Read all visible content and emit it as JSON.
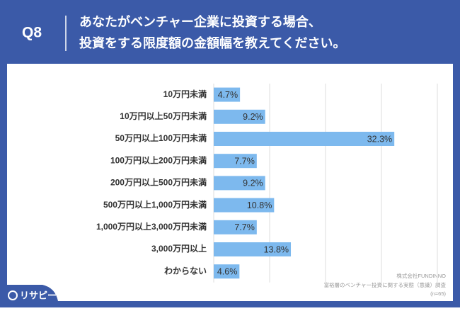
{
  "chart_data": {
    "type": "barh",
    "question_number": "Q8",
    "title_lines": [
      "あなたがベンチャー企業に投資する場合、",
      "投資をする限度額の金額幅を教えてください。"
    ],
    "categories": [
      "10万円未満",
      "10万円以上50万円未満",
      "50万円以上100万円未満",
      "100万円以上200万円未満",
      "200万円以上500万円未満",
      "500万円以上1,000万円未満",
      "1,000万円以上3,000万円未満",
      "3,000万円以上",
      "わからない"
    ],
    "values": [
      4.7,
      9.2,
      32.3,
      7.7,
      9.2,
      10.8,
      7.7,
      13.8,
      4.6
    ],
    "value_labels": [
      "4.7%",
      "9.2%",
      "32.3%",
      "7.7%",
      "9.2%",
      "10.8%",
      "7.7%",
      "13.8%",
      "4.6%"
    ],
    "color": "#7db9ee",
    "xlim": [
      0,
      40
    ],
    "xticks": [
      0,
      10,
      20,
      30,
      40
    ],
    "grid": true,
    "source_lines": [
      "株式会社FUNDINNO",
      "富裕層のベンチャー投資に関する実態（意識）調査",
      "(n=65)"
    ],
    "logo": "リサピー"
  }
}
